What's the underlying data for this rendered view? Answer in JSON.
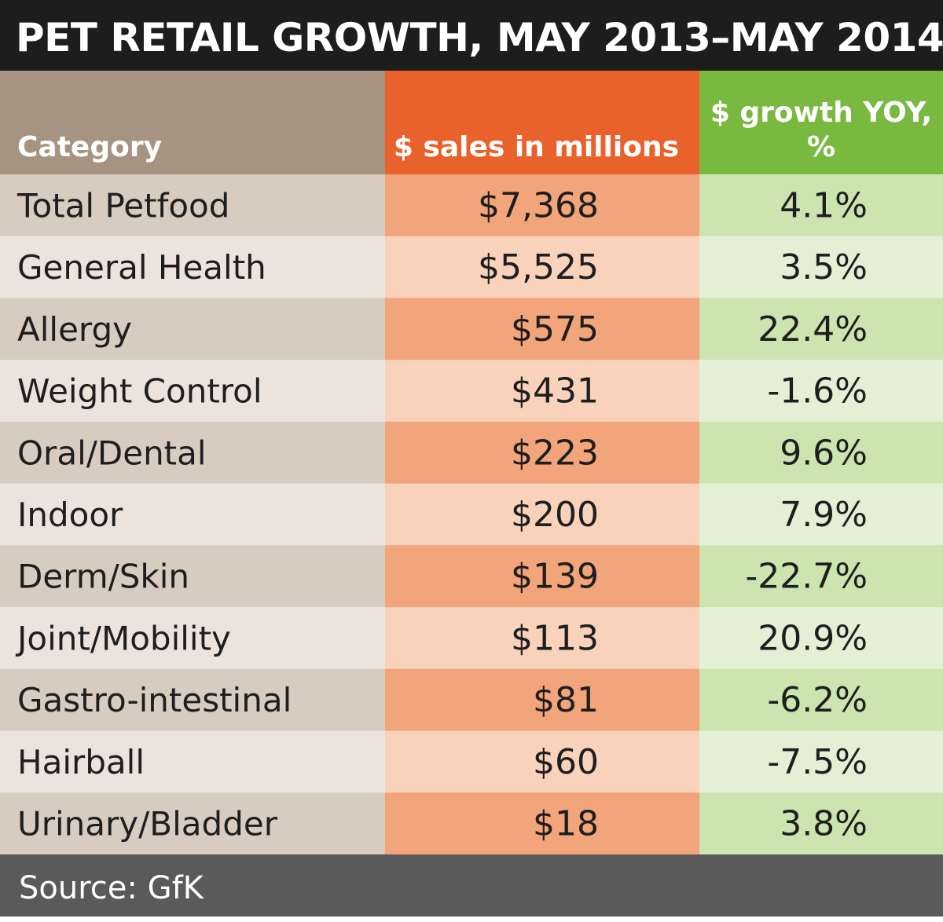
{
  "title": "PET RETAIL GROWTH, MAY 2013–MAY 2014",
  "source": "Source: GfK",
  "colors": {
    "title_bg": "#1d1d1d",
    "header_category": "#a69381",
    "header_sales": "#e9622b",
    "header_growth": "#79b940",
    "category_odd": "#d8cbbf",
    "category_even": "#ece3dc",
    "sales_odd": "#f2a47a",
    "sales_even": "#f8d2bb",
    "growth_odd": "#cbe4b0",
    "growth_even": "#e4f0d6",
    "footer_bg": "#5a5a5a"
  },
  "chart_data": {
    "type": "table",
    "title": "PET RETAIL GROWTH, MAY 2013–MAY 2014",
    "columns": [
      "Category",
      "$ sales in millions",
      "$ growth YOY, %"
    ],
    "rows": [
      {
        "category": "Total Petfood",
        "sales": "$7,368",
        "growth": "4.1%"
      },
      {
        "category": "General Health",
        "sales": "$5,525",
        "growth": "3.5%"
      },
      {
        "category": "Allergy",
        "sales": "$575",
        "growth": "22.4%"
      },
      {
        "category": "Weight Control",
        "sales": "$431",
        "growth": "-1.6%"
      },
      {
        "category": "Oral/Dental",
        "sales": "$223",
        "growth": "9.6%"
      },
      {
        "category": "Indoor",
        "sales": "$200",
        "growth": "7.9%"
      },
      {
        "category": "Derm/Skin",
        "sales": "$139",
        "growth": "-22.7%"
      },
      {
        "category": "Joint/Mobility",
        "sales": "$113",
        "growth": "20.9%"
      },
      {
        "category": "Gastro-intestinal",
        "sales": "$81",
        "growth": "-6.2%"
      },
      {
        "category": "Hairball",
        "sales": "$60",
        "growth": "-7.5%"
      },
      {
        "category": "Urinary/Bladder",
        "sales": "$18",
        "growth": "3.8%"
      }
    ],
    "source": "Source: GfK"
  }
}
